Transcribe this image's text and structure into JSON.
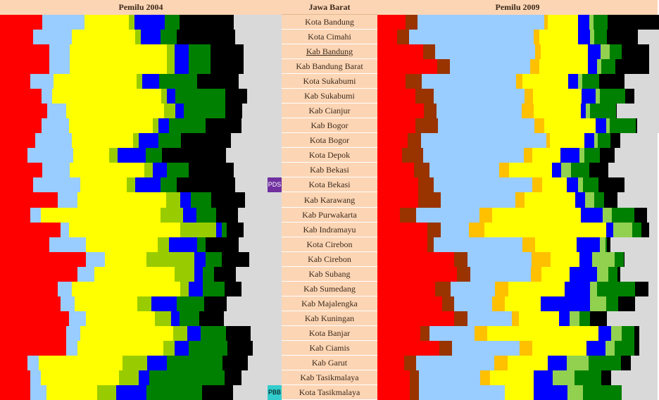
{
  "headers": {
    "left": "Pemilu 2004",
    "center": "Jawa Barat",
    "right": "Pemilu 2009"
  },
  "tags": [
    {
      "text": "PDS",
      "region": "Kota Bekasi",
      "color": "#7030a0"
    },
    {
      "text": "PBB",
      "region": "Kota Tasikmalaya",
      "color": "#33cccc"
    }
  ],
  "colors": {
    "red": "#ff0000",
    "brown": "#993300",
    "lightblue": "#99ccff",
    "orange": "#ffc000",
    "yellow": "#ffff00",
    "lime": "#99cc00",
    "lightgreen": "#92d050",
    "blue": "#0000ff",
    "green": "#008000",
    "black": "#000000",
    "gray": "#d9d9d9"
  },
  "chart_data": {
    "type": "bar",
    "stacked": true,
    "orientation": "horizontal",
    "regions": [
      "Kota Bandung",
      "Kota  Cimahi",
      "Kab Bandung",
      "Kab Bandung Barat",
      "Kota Sukabumi",
      "Kab Sukabumi",
      "Kab Cianjur",
      "Kab Bogor",
      "Kota Bogor",
      "Kota Depok",
      "Kab Bekasi",
      "Kota Bekasi",
      "Kab Karawang",
      "Kab Purwakarta",
      "Kab Indramayu",
      "Kota Cirebon",
      "Kab Cirebon",
      "Kab Subang",
      "Kab Sumedang",
      "Kab Majalengka",
      "Kab Kuningan",
      "Kota Banjar",
      "Kab Ciamis",
      "Kab Garut",
      "Kab Tasikmalaya",
      "Kota Tasikmalaya"
    ],
    "underlined_region": "Kab Bandung",
    "pemilu_2004": {
      "segment_colors": [
        "red",
        "lightblue",
        "yellow",
        "lime",
        "blue",
        "green",
        "black",
        "gray"
      ],
      "rows": [
        [
          0.15,
          0.151,
          0.157,
          0.019,
          0.108,
          0.052,
          0.192,
          0.171
        ],
        [
          0.117,
          0.137,
          0.227,
          0.019,
          0.069,
          0.059,
          0.208,
          0.164
        ],
        [
          0.176,
          0.071,
          0.345,
          0.029,
          0.049,
          0.078,
          0.118,
          0.134
        ],
        [
          0.176,
          0.071,
          0.345,
          0.029,
          0.049,
          0.078,
          0.118,
          0.134
        ],
        [
          0.107,
          0.082,
          0.297,
          0.019,
          0.059,
          0.137,
          0.147,
          0.152
        ],
        [
          0.147,
          0.039,
          0.387,
          0.02,
          0.029,
          0.177,
          0.079,
          0.122
        ],
        [
          0.167,
          0.069,
          0.347,
          0.039,
          0.03,
          0.148,
          0.06,
          0.14
        ],
        [
          0.147,
          0.099,
          0.297,
          0.019,
          0.039,
          0.128,
          0.128,
          0.143
        ],
        [
          0.126,
          0.13,
          0.217,
          0.02,
          0.069,
          0.081,
          0.178,
          0.179
        ],
        [
          0.098,
          0.162,
          0.128,
          0.03,
          0.099,
          0.059,
          0.226,
          0.198
        ],
        [
          0.149,
          0.099,
          0.265,
          0.03,
          0.049,
          0.079,
          0.159,
          0.17
        ],
        [
          0.117,
          0.168,
          0.166,
          0.029,
          0.089,
          0.059,
          0.208,
          0.164
        ],
        [
          0.205,
          0.069,
          0.315,
          0.05,
          0.039,
          0.071,
          0.12,
          0.131
        ],
        [
          0.107,
          0.039,
          0.424,
          0.079,
          0.049,
          0.07,
          0.078,
          0.154
        ],
        [
          0.215,
          0.03,
          0.394,
          0.128,
          0.02,
          0.019,
          0.059,
          0.135
        ],
        [
          0.175,
          0.13,
          0.256,
          0.039,
          0.099,
          0.03,
          0.118,
          0.153
        ],
        [
          0.304,
          0.068,
          0.149,
          0.168,
          0.04,
          0.059,
          0.098,
          0.114
        ],
        [
          0.275,
          0.059,
          0.286,
          0.069,
          0.03,
          0.04,
          0.078,
          0.163
        ],
        [
          0.205,
          0.051,
          0.384,
          0.03,
          0.049,
          0.079,
          0.059,
          0.143
        ],
        [
          0.215,
          0.05,
          0.223,
          0.05,
          0.089,
          0.099,
          0.078,
          0.196
        ],
        [
          0.245,
          0.059,
          0.245,
          0.059,
          0.03,
          0.069,
          0.088,
          0.205
        ],
        [
          0.236,
          0.05,
          0.328,
          0.05,
          0.049,
          0.09,
          0.088,
          0.109
        ],
        [
          0.235,
          0.039,
          0.306,
          0.04,
          0.05,
          0.138,
          0.089,
          0.103
        ],
        [
          0.098,
          0.039,
          0.297,
          0.089,
          0.069,
          0.198,
          0.09,
          0.12
        ],
        [
          0.107,
          0.039,
          0.277,
          0.069,
          0.039,
          0.267,
          0.06,
          0.142
        ],
        [
          0.107,
          0.059,
          0.178,
          0.069,
          0.108,
          0.197,
          0.11,
          0.172
        ]
      ]
    },
    "pemilu_2009": {
      "segment_colors": [
        "red",
        "brown",
        "lightblue",
        "orange",
        "yellow",
        "blue",
        "lightgreen",
        "green",
        "black",
        "gray"
      ],
      "rows": [
        [
          0.101,
          0.041,
          0.453,
          0.014,
          0.108,
          0.04,
          0.014,
          0.05,
          0.193,
          0.107
        ],
        [
          0.071,
          0.041,
          0.445,
          0.021,
          0.137,
          0.045,
          0.014,
          0.046,
          0.109,
          0.112
        ],
        [
          0.163,
          0.043,
          0.357,
          0.021,
          0.167,
          0.046,
          0.031,
          0.044,
          0.098,
          0.126
        ],
        [
          0.214,
          0.045,
          0.286,
          0.032,
          0.175,
          0.032,
          0.016,
          0.048,
          0.123,
          0.145
        ],
        [
          0.101,
          0.058,
          0.335,
          0.024,
          0.162,
          0.035,
          0.015,
          0.062,
          0.091,
          0.121
        ],
        [
          0.135,
          0.067,
          0.323,
          0.03,
          0.173,
          0.051,
          0.014,
          0.092,
          0.032,
          0.144
        ],
        [
          0.167,
          0.043,
          0.305,
          0.043,
          0.167,
          0.019,
          0.016,
          0.093,
          0.001,
          0.175
        ],
        [
          0.135,
          0.081,
          0.345,
          0.035,
          0.184,
          0.037,
          0.013,
          0.092,
          0.004,
          0.136
        ],
        [
          0.109,
          0.046,
          0.447,
          0.014,
          0.122,
          0.035,
          0.014,
          0.045,
          0.035,
          0.133
        ],
        [
          0.087,
          0.077,
          0.359,
          0.03,
          0.101,
          0.068,
          0.016,
          0.057,
          0.052,
          0.153
        ],
        [
          0.131,
          0.055,
          0.249,
          0.036,
          0.151,
          0.035,
          0.034,
          0.066,
          0.068,
          0.175
        ],
        [
          0.145,
          0.056,
          0.351,
          0.035,
          0.09,
          0.039,
          0.018,
          0.056,
          0.092,
          0.118
        ],
        [
          0.146,
          0.08,
          0.266,
          0.034,
          0.181,
          0.035,
          0.032,
          0.034,
          0.048,
          0.144
        ],
        [
          0.08,
          0.057,
          0.227,
          0.046,
          0.316,
          0.079,
          0.032,
          0.081,
          0.044,
          0.038
        ],
        [
          0.178,
          0.047,
          0.102,
          0.054,
          0.436,
          0.024,
          0.069,
          0.033,
          0.026,
          0.031
        ],
        [
          0.178,
          0.024,
          0.316,
          0.046,
          0.148,
          0.081,
          0.021,
          0.004,
          0.014,
          0.168
        ],
        [
          0.275,
          0.047,
          0.227,
          0.069,
          0.102,
          0.047,
          0.08,
          0.033,
          0.003,
          0.117
        ],
        [
          0.284,
          0.047,
          0.217,
          0.038,
          0.1,
          0.098,
          0.041,
          0.033,
          0.01,
          0.132
        ],
        [
          0.205,
          0.057,
          0.158,
          0.047,
          0.202,
          0.091,
          0.024,
          0.136,
          0.047,
          0.033
        ],
        [
          0.23,
          0.045,
          0.135,
          0.046,
          0.127,
          0.175,
          0.058,
          0.043,
          0.061,
          0.08
        ],
        [
          0.275,
          0.047,
          0.158,
          0.024,
          0.145,
          0.038,
          0.035,
          0.038,
          0.06,
          0.18
        ],
        [
          0.153,
          0.034,
          0.159,
          0.046,
          0.398,
          0.044,
          0.038,
          0.044,
          0.018,
          0.066
        ],
        [
          0.222,
          0.044,
          0.241,
          0.045,
          0.195,
          0.066,
          0.033,
          0.07,
          0.019,
          0.065
        ],
        [
          0.096,
          0.043,
          0.278,
          0.047,
          0.145,
          0.066,
          0.079,
          0.115,
          0.036,
          0.095
        ],
        [
          0.115,
          0.034,
          0.218,
          0.034,
          0.157,
          0.067,
          0.079,
          0.094,
          0.035,
          0.167
        ],
        [
          0.115,
          0.034,
          0.305,
          0.002,
          0.102,
          0.12,
          0.056,
          0.137,
          0.001,
          0.128
        ]
      ]
    }
  }
}
